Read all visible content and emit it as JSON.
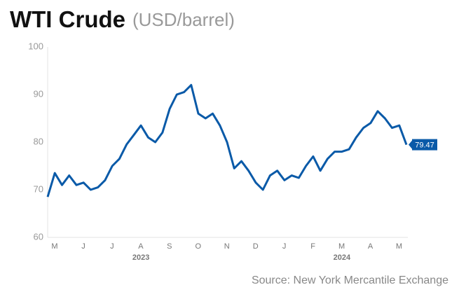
{
  "chart_data": {
    "type": "line",
    "title": "WTI Crude",
    "subtitle": "(USD/barrel)",
    "source": "Source: New York Mercantile Exchange",
    "categories": [
      null,
      "M",
      null,
      null,
      null,
      "J",
      null,
      null,
      null,
      "J",
      null,
      null,
      null,
      "A",
      null,
      null,
      null,
      "S",
      null,
      null,
      null,
      "O",
      null,
      null,
      null,
      "N",
      null,
      null,
      null,
      "D",
      null,
      null,
      null,
      "J",
      null,
      null,
      null,
      "F",
      null,
      null,
      null,
      "M",
      null,
      null,
      null,
      "A",
      null,
      null,
      null,
      "M",
      null
    ],
    "year_labels": [
      "2023",
      "2024"
    ],
    "series": [
      {
        "name": "WTI Crude",
        "color": "#0a5aa8",
        "values": [
          68.5,
          73.5,
          71,
          73,
          71,
          71.5,
          70,
          70.5,
          72,
          75,
          76.5,
          79.5,
          81.5,
          83.5,
          81,
          80,
          82,
          87,
          90,
          90.5,
          92,
          86,
          85,
          86,
          83.5,
          80,
          74.5,
          76,
          74,
          71.5,
          70,
          73,
          74,
          72,
          73,
          72.5,
          75,
          77,
          74,
          76.5,
          78,
          78,
          78.5,
          81,
          83,
          84,
          86.5,
          85,
          83,
          83.5,
          79.47
        ]
      }
    ],
    "ylim": [
      60,
      100
    ],
    "yticks": [
      60,
      70,
      80,
      90,
      100
    ],
    "grid": false,
    "label_last": true
  }
}
